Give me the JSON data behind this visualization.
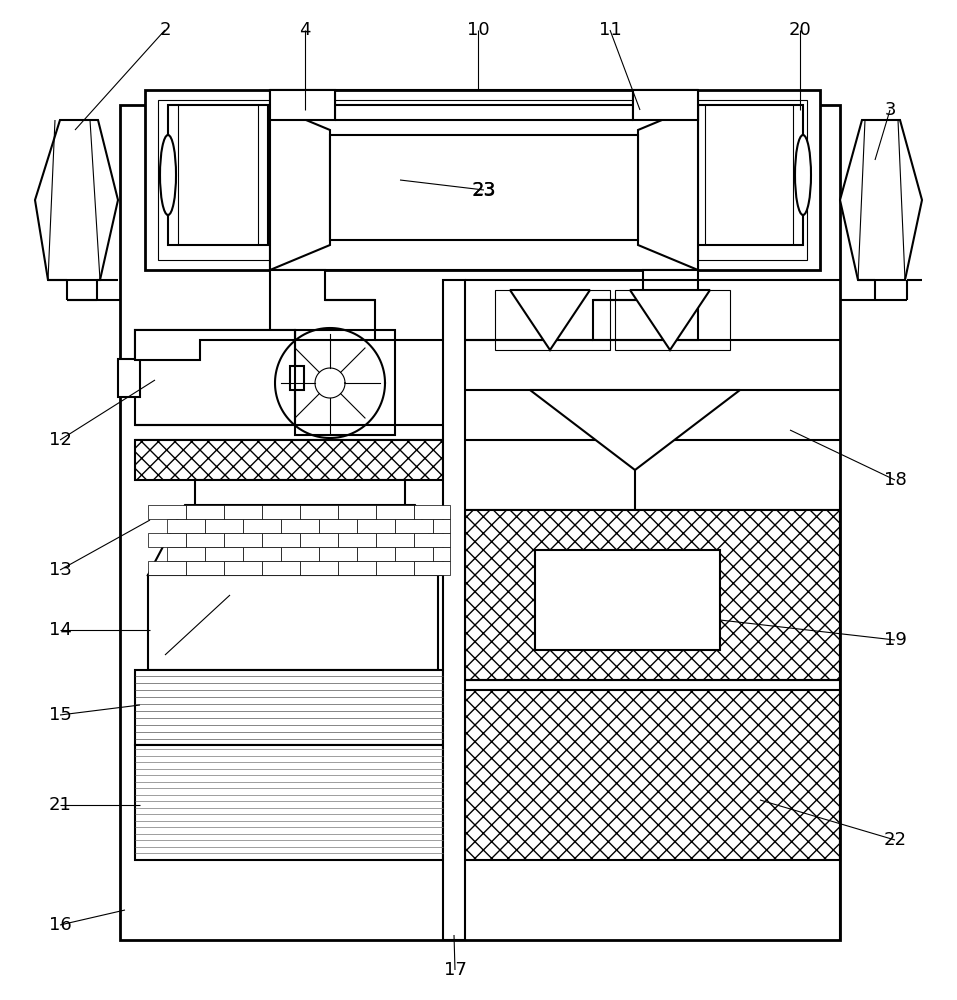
{
  "bg_color": "#ffffff",
  "lc": "#000000",
  "lw": 1.5,
  "tlw": 0.8
}
